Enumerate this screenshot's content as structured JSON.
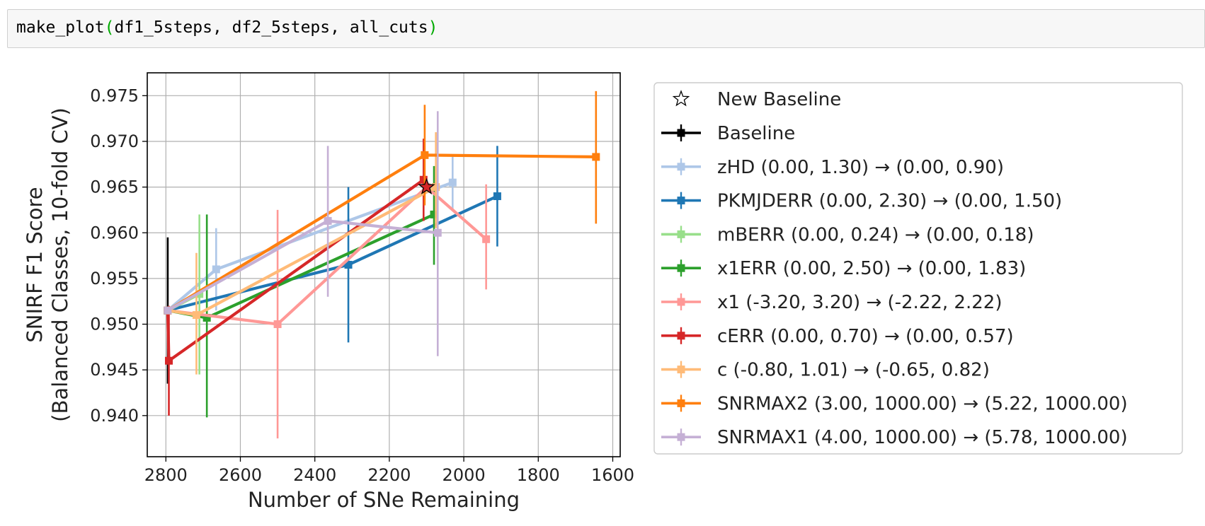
{
  "cell": {
    "code_func": "make_plot",
    "code_open": "(",
    "code_args": "df1_5steps, df2_5steps, all_cuts",
    "code_close": ")"
  },
  "chart_data": {
    "type": "line",
    "xlabel": "Number of SNe Remaining",
    "ylabel": [
      "SNIRF F1 Score",
      "(Balanced Classes, 10-fold CV)"
    ],
    "xlim": [
      2850,
      1580
    ],
    "ylim": [
      0.9355,
      0.9775
    ],
    "x_inverted": true,
    "xticks": [
      2800,
      2600,
      2400,
      2200,
      2000,
      1800,
      1600
    ],
    "yticks": [
      0.94,
      0.945,
      0.95,
      0.955,
      0.96,
      0.965,
      0.97,
      0.975
    ],
    "ytick_labels": [
      "0.940",
      "0.945",
      "0.950",
      "0.955",
      "0.960",
      "0.965",
      "0.970",
      "0.975"
    ],
    "grid": true,
    "legend_position": "outside-right",
    "new_baseline": {
      "name": "New Baseline",
      "x": 2100,
      "y": 0.965,
      "color": "#d62728"
    },
    "series": [
      {
        "name": "Baseline",
        "color": "#000000",
        "x": [
          2795
        ],
        "y": [
          0.9515
        ],
        "yerr_low": [
          0.9435
        ],
        "yerr_high": [
          0.9595
        ]
      },
      {
        "name": "zHD  (0.00, 1.30) → (0.00, 0.90)",
        "color": "#aec7e8",
        "x": [
          2795,
          2665,
          2030
        ],
        "y": [
          0.9515,
          0.956,
          0.9655
        ],
        "yerr_low": [
          0.9515,
          0.9515,
          0.9625
        ],
        "yerr_high": [
          0.9515,
          0.9605,
          0.9685
        ]
      },
      {
        "name": "PKMJDERR  (0.00, 2.30) → (0.00, 1.50)",
        "color": "#1f77b4",
        "x": [
          2795,
          2310,
          1910
        ],
        "y": [
          0.9515,
          0.9565,
          0.964
        ],
        "yerr_low": [
          0.9515,
          0.948,
          0.9585
        ],
        "yerr_high": [
          0.9515,
          0.965,
          0.9695
        ]
      },
      {
        "name": "mBERR  (0.00, 0.24) → (0.00, 0.18)",
        "color": "#98df8a",
        "x": [
          2795,
          2710
        ],
        "y": [
          0.9515,
          0.9533
        ],
        "yerr_low": [
          0.9515,
          0.9445
        ],
        "yerr_high": [
          0.9515,
          0.962
        ]
      },
      {
        "name": "x1ERR  (0.00, 2.50) → (0.00, 1.83)",
        "color": "#2ca02c",
        "x": [
          2795,
          2690,
          2080
        ],
        "y": [
          0.9515,
          0.9507,
          0.962
        ],
        "yerr_low": [
          0.9515,
          0.9398,
          0.9565
        ],
        "yerr_high": [
          0.9515,
          0.962,
          0.9673
        ]
      },
      {
        "name": "x1  (-3.20, 3.20) → (-2.22, 2.22)",
        "color": "#ff9896",
        "x": [
          2795,
          2500,
          2100,
          1940
        ],
        "y": [
          0.9515,
          0.95,
          0.965,
          0.9593
        ],
        "yerr_low": [
          0.9515,
          0.9375,
          0.965,
          0.9538
        ],
        "yerr_high": [
          0.9515,
          0.9625,
          0.965,
          0.9653
        ]
      },
      {
        "name": "cERR  (0.00, 0.70) → (0.00, 0.57)",
        "color": "#d62728",
        "x": [
          2795,
          2792,
          2108
        ],
        "y": [
          0.9515,
          0.946,
          0.9658
        ],
        "yerr_low": [
          0.9515,
          0.94,
          0.9613
        ],
        "yerr_high": [
          0.9515,
          0.952,
          0.9703
        ]
      },
      {
        "name": "c  (-0.80, 1.01) → (-0.65, 0.82)",
        "color": "#ffbb78",
        "x": [
          2795,
          2718,
          2075
        ],
        "y": [
          0.9515,
          0.951,
          0.965
        ],
        "yerr_low": [
          0.9515,
          0.9445,
          0.9605
        ],
        "yerr_high": [
          0.9515,
          0.9578,
          0.971
        ]
      },
      {
        "name": "SNRMAX2  (3.00, 1000.00) → (5.22, 1000.00)",
        "color": "#ff7f0e",
        "x": [
          2795,
          2105,
          1645
        ],
        "y": [
          0.9515,
          0.9685,
          0.9683
        ],
        "yerr_low": [
          0.9515,
          0.963,
          0.961
        ],
        "yerr_high": [
          0.9515,
          0.974,
          0.9755
        ]
      },
      {
        "name": "SNRMAX1  (4.00, 1000.00) → (5.78, 1000.00)",
        "color": "#c5b0d5",
        "x": [
          2795,
          2365,
          2070
        ],
        "y": [
          0.9515,
          0.9613,
          0.96
        ],
        "yerr_low": [
          0.9515,
          0.953,
          0.9465
        ],
        "yerr_high": [
          0.9515,
          0.9695,
          0.9733
        ]
      }
    ]
  }
}
